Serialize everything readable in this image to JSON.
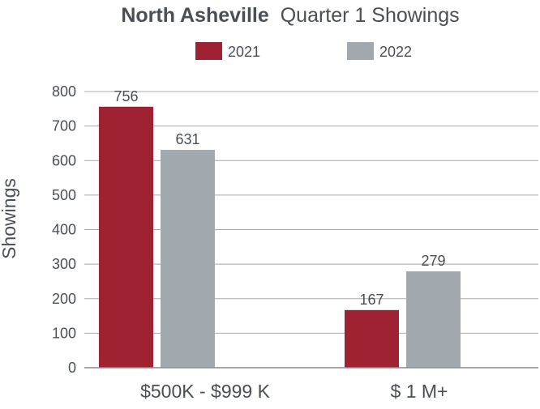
{
  "chart_data": {
    "type": "bar",
    "title_bold": "North Asheville",
    "title_rest": "Quarter 1 Showings",
    "xlabel": "",
    "ylabel": "Showings",
    "ylim": [
      0,
      800
    ],
    "yticks": [
      0,
      100,
      200,
      300,
      400,
      500,
      600,
      700,
      800
    ],
    "grid": true,
    "legend_position": "top-center",
    "categories": [
      "$500K - $999 K",
      "$ 1 M+"
    ],
    "series": [
      {
        "name": "2021",
        "values": [
          756,
          167
        ],
        "color": "#9e2232"
      },
      {
        "name": "2022",
        "values": [
          631,
          279
        ],
        "color": "#a2a9ae"
      }
    ],
    "data_labels": true
  }
}
